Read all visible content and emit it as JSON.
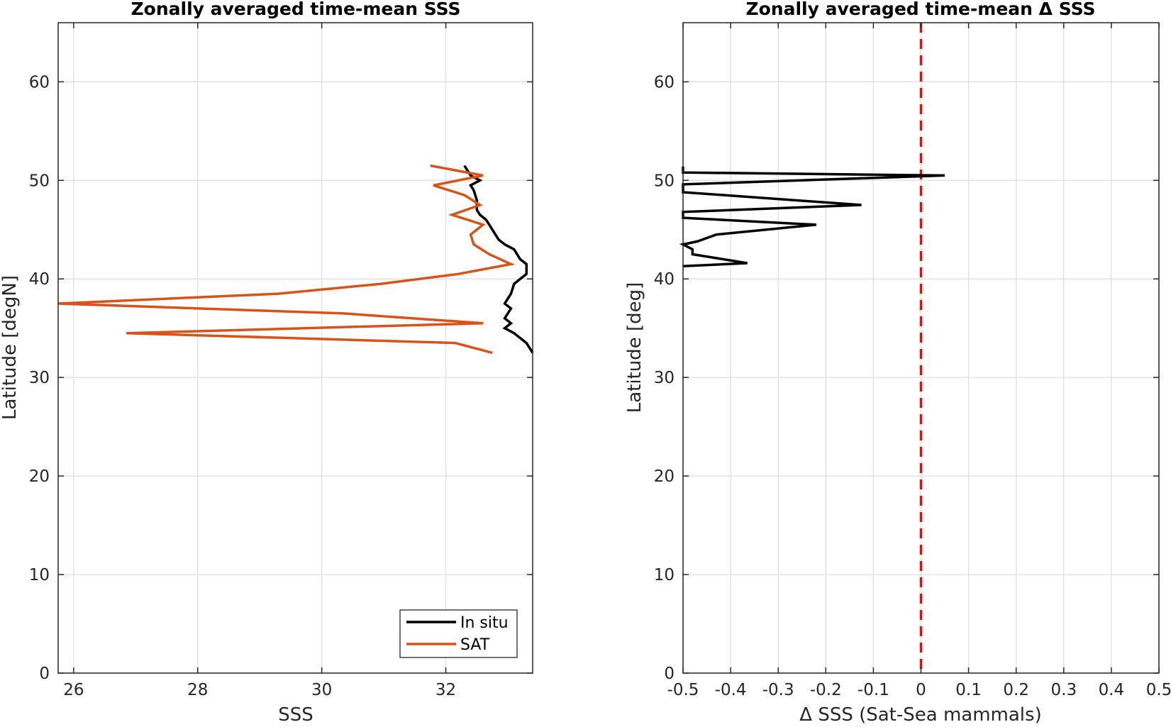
{
  "chart_data": [
    {
      "type": "line",
      "title": "Zonally averaged time-mean SSS",
      "xlabel": "SSS",
      "ylabel": "Latitude [degN]",
      "xlim": [
        25.75,
        33.4
      ],
      "ylim": [
        0,
        66
      ],
      "xticks": [
        26,
        28,
        30,
        32
      ],
      "yticks": [
        0,
        10,
        20,
        30,
        40,
        50,
        60
      ],
      "grid": true,
      "legend_position": "bottom-right",
      "series": [
        {
          "name": "In situ",
          "color": "#000000",
          "x": [
            33.4,
            33.3,
            33.1,
            32.95,
            33.05,
            32.95,
            33.05,
            32.95,
            33.05,
            33.1,
            33.2,
            33.3,
            33.3,
            33.2,
            33.1,
            32.95,
            32.85,
            32.7,
            32.65,
            32.55,
            32.5,
            32.5,
            32.45,
            32.4,
            32.55,
            32.4,
            32.3
          ],
          "y": [
            32.5,
            33.5,
            34.5,
            35.0,
            35.5,
            36.0,
            37.0,
            37.5,
            38.5,
            39.5,
            40.0,
            40.5,
            41.5,
            42.0,
            43.0,
            43.5,
            44.0,
            45.5,
            46.0,
            46.5,
            47.0,
            48.0,
            49.0,
            49.5,
            50.0,
            50.5,
            51.5
          ]
        },
        {
          "name": "SAT",
          "color": "#d95319",
          "x": [
            32.75,
            32.15,
            26.85,
            32.6,
            30.35,
            25.75,
            29.3,
            30.95,
            32.2,
            33.05,
            32.7,
            32.45,
            32.4,
            32.6,
            32.1,
            32.55,
            32.3,
            31.8,
            32.6,
            31.75
          ],
          "y": [
            32.5,
            33.5,
            34.5,
            35.5,
            36.5,
            37.5,
            38.5,
            39.5,
            40.5,
            41.5,
            42.5,
            43.5,
            44.5,
            45.5,
            46.5,
            47.5,
            48.5,
            49.5,
            50.5,
            51.5
          ]
        }
      ]
    },
    {
      "type": "line",
      "title": "Zonally averaged time-mean Δ SSS",
      "xlabel": "Δ SSS (Sat-Sea mammals)",
      "ylabel": "Latitude [deg]",
      "xlim": [
        -0.5,
        0.5
      ],
      "ylim": [
        0,
        66
      ],
      "xticks": [
        -0.5,
        -0.4,
        -0.3,
        -0.2,
        -0.1,
        0,
        0.1,
        0.2,
        0.3,
        0.4,
        0.5
      ],
      "yticks": [
        0,
        10,
        20,
        30,
        40,
        50,
        60
      ],
      "grid": true,
      "series": [
        {
          "name": "",
          "color": "#000000",
          "x": [
            -0.5,
            -0.365,
            -0.48,
            -0.48,
            -0.5,
            -0.47,
            -0.43,
            -0.22,
            -0.5,
            -0.5,
            -0.125,
            -0.5,
            -0.5,
            0.05,
            -0.5,
            -0.5
          ],
          "y": [
            41.3,
            41.6,
            42.5,
            43.0,
            43.5,
            43.8,
            44.5,
            45.5,
            46.2,
            46.8,
            47.5,
            48.8,
            49.6,
            50.5,
            50.8,
            51.4
          ]
        }
      ],
      "reference_line": {
        "x": 0,
        "color": "#ff0000",
        "style": "dashed"
      }
    }
  ]
}
